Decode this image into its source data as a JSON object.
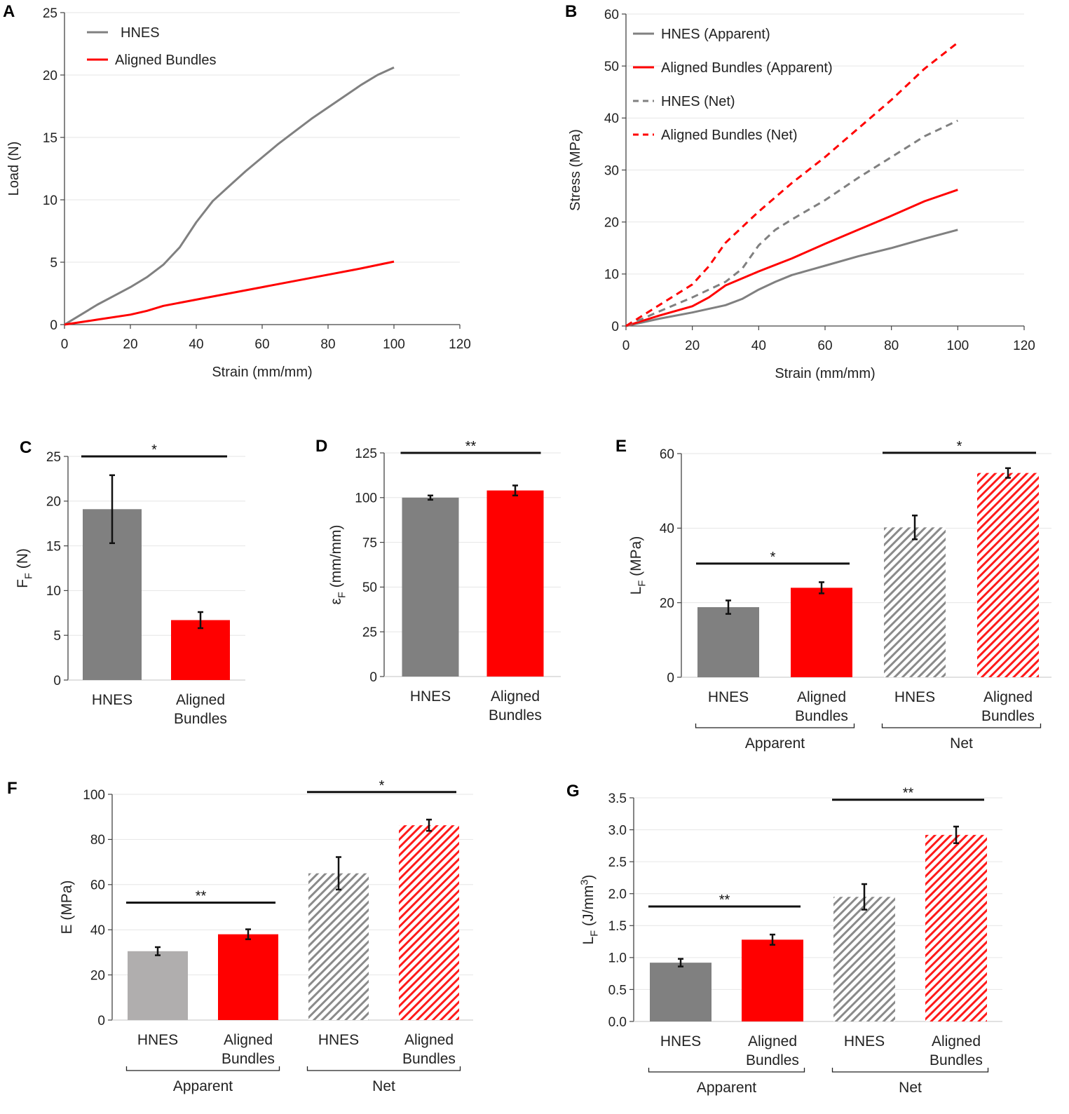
{
  "figure": {
    "colors": {
      "hnes": "#808080",
      "hnes_light": "#b0aeae",
      "aligned": "#ff0000",
      "axis": "#444444",
      "grid": "#e6e6e6",
      "text": "#222222"
    }
  },
  "chart_data": [
    {
      "panel": "A",
      "type": "line",
      "xlabel": "Strain (mm/mm)",
      "ylabel": "Load (N)",
      "xlim": [
        0,
        120
      ],
      "ylim": [
        0,
        25
      ],
      "xticks": [
        0,
        20,
        40,
        60,
        80,
        100,
        120
      ],
      "yticks": [
        0,
        5,
        10,
        15,
        20,
        25
      ],
      "grid": true,
      "legend": "top-left",
      "series": [
        {
          "name": "HNES",
          "color": "#808080",
          "dash": false,
          "points": [
            [
              0,
              0
            ],
            [
              5,
              0.8
            ],
            [
              10,
              1.6
            ],
            [
              15,
              2.3
            ],
            [
              20,
              3.0
            ],
            [
              25,
              3.8
            ],
            [
              30,
              4.8
            ],
            [
              35,
              6.2
            ],
            [
              40,
              8.2
            ],
            [
              45,
              9.9
            ],
            [
              50,
              11.1
            ],
            [
              55,
              12.3
            ],
            [
              60,
              13.4
            ],
            [
              65,
              14.5
            ],
            [
              70,
              15.5
            ],
            [
              75,
              16.5
            ],
            [
              80,
              17.4
            ],
            [
              85,
              18.3
            ],
            [
              90,
              19.2
            ],
            [
              95,
              20.0
            ],
            [
              100,
              20.6
            ]
          ]
        },
        {
          "name": "Aligned Bundles",
          "color": "#ff0000",
          "dash": false,
          "points": [
            [
              0,
              0
            ],
            [
              10,
              0.4
            ],
            [
              20,
              0.8
            ],
            [
              25,
              1.1
            ],
            [
              30,
              1.5
            ],
            [
              40,
              2.0
            ],
            [
              50,
              2.5
            ],
            [
              60,
              3.0
            ],
            [
              70,
              3.5
            ],
            [
              80,
              4.0
            ],
            [
              90,
              4.5
            ],
            [
              100,
              5.05
            ]
          ]
        }
      ]
    },
    {
      "panel": "B",
      "type": "line",
      "xlabel": "Strain (mm/mm)",
      "ylabel": "Stress (MPa)",
      "xlim": [
        0,
        120
      ],
      "ylim": [
        0,
        60
      ],
      "xticks": [
        0,
        20,
        40,
        60,
        80,
        100,
        120
      ],
      "yticks": [
        0,
        10,
        20,
        30,
        40,
        50,
        60
      ],
      "grid": true,
      "legend": "top-left",
      "series": [
        {
          "name": "HNES (Apparent)",
          "color": "#808080",
          "dash": false,
          "points": [
            [
              0,
              0
            ],
            [
              10,
              1.4
            ],
            [
              20,
              2.6
            ],
            [
              30,
              4.0
            ],
            [
              35,
              5.2
            ],
            [
              40,
              7.0
            ],
            [
              45,
              8.5
            ],
            [
              50,
              9.8
            ],
            [
              60,
              11.6
            ],
            [
              70,
              13.4
            ],
            [
              80,
              15.0
            ],
            [
              90,
              16.8
            ],
            [
              100,
              18.5
            ]
          ]
        },
        {
          "name": "Aligned Bundles (Apparent)",
          "color": "#ff0000",
          "dash": false,
          "points": [
            [
              0,
              0
            ],
            [
              10,
              2.0
            ],
            [
              20,
              3.8
            ],
            [
              25,
              5.5
            ],
            [
              30,
              7.8
            ],
            [
              40,
              10.5
            ],
            [
              50,
              13.0
            ],
            [
              60,
              15.8
            ],
            [
              70,
              18.5
            ],
            [
              80,
              21.2
            ],
            [
              90,
              24.0
            ],
            [
              100,
              26.2
            ]
          ]
        },
        {
          "name": "HNES (Net)",
          "color": "#808080",
          "dash": true,
          "points": [
            [
              0,
              0
            ],
            [
              10,
              2.8
            ],
            [
              20,
              5.5
            ],
            [
              30,
              8.5
            ],
            [
              35,
              11.0
            ],
            [
              40,
              15.5
            ],
            [
              45,
              18.5
            ],
            [
              50,
              20.5
            ],
            [
              60,
              24.2
            ],
            [
              70,
              28.5
            ],
            [
              80,
              32.5
            ],
            [
              90,
              36.5
            ],
            [
              100,
              39.5
            ]
          ]
        },
        {
          "name": "Aligned Bundles (Net)",
          "color": "#ff0000",
          "dash": true,
          "points": [
            [
              0,
              0
            ],
            [
              10,
              4.0
            ],
            [
              20,
              8.0
            ],
            [
              25,
              11.5
            ],
            [
              30,
              16.0
            ],
            [
              40,
              22.0
            ],
            [
              50,
              27.5
            ],
            [
              60,
              32.5
            ],
            [
              70,
              38.0
            ],
            [
              80,
              43.5
            ],
            [
              90,
              49.5
            ],
            [
              100,
              54.5
            ]
          ]
        }
      ]
    },
    {
      "panel": "C",
      "type": "bar",
      "ylabel": "FF (N)",
      "ylim": [
        0,
        25
      ],
      "yticks": [
        0,
        5,
        10,
        15,
        20,
        25
      ],
      "grid": true,
      "bars": [
        {
          "label": "HNES",
          "value": 19.1,
          "err": 3.8,
          "color": "#808080",
          "hatch": false
        },
        {
          "label": "Aligned Bundles",
          "value": 6.7,
          "err": 0.9,
          "color": "#ff0000",
          "hatch": false
        }
      ],
      "sig": [
        {
          "from": 0,
          "to": 1,
          "y": 25,
          "label": "*"
        }
      ]
    },
    {
      "panel": "D",
      "type": "bar",
      "ylabel": "εF (mm/mm)",
      "ylim": [
        0,
        125
      ],
      "yticks": [
        0,
        25,
        50,
        75,
        100,
        125
      ],
      "grid": true,
      "bars": [
        {
          "label": "HNES",
          "value": 100,
          "err": 1.2,
          "color": "#808080",
          "hatch": false
        },
        {
          "label": "Aligned Bundles",
          "value": 104,
          "err": 2.8,
          "color": "#ff0000",
          "hatch": false
        }
      ],
      "sig": [
        {
          "from": 0,
          "to": 1,
          "y": 125,
          "label": "**"
        }
      ]
    },
    {
      "panel": "E",
      "type": "bar",
      "ylabel": "LF (MPa)",
      "ylim": [
        0,
        60
      ],
      "yticks": [
        0,
        20,
        40,
        60
      ],
      "grid": true,
      "bars": [
        {
          "label": "HNES",
          "value": 18.8,
          "err": 1.8,
          "color": "#808080",
          "hatch": false
        },
        {
          "label": "Aligned Bundles",
          "value": 24.0,
          "err": 1.5,
          "color": "#ff0000",
          "hatch": false
        },
        {
          "label": "HNES",
          "value": 40.2,
          "err": 3.2,
          "color": "#808080",
          "hatch": true
        },
        {
          "label": "Aligned Bundles",
          "value": 54.8,
          "err": 1.3,
          "color": "#ff0000",
          "hatch": true
        }
      ],
      "groups": [
        {
          "label": "Apparent",
          "from": 0,
          "to": 1
        },
        {
          "label": "Net",
          "from": 2,
          "to": 3
        }
      ],
      "sig": [
        {
          "from": 0,
          "to": 1,
          "y": 30.5,
          "label": "*"
        },
        {
          "from": 2,
          "to": 3,
          "y": 60.2,
          "label": "*"
        }
      ]
    },
    {
      "panel": "F",
      "type": "bar",
      "ylabel": "E (MPa)",
      "ylim": [
        0,
        100
      ],
      "yticks": [
        0,
        20,
        40,
        60,
        80,
        100
      ],
      "grid": true,
      "bars": [
        {
          "label": "HNES",
          "value": 30.5,
          "err": 1.8,
          "color": "#b0aeae",
          "hatch": false
        },
        {
          "label": "Aligned Bundles",
          "value": 38.0,
          "err": 2.2,
          "color": "#ff0000",
          "hatch": false
        },
        {
          "label": "HNES",
          "value": 65.0,
          "err": 7.2,
          "color": "#808080",
          "hatch": true
        },
        {
          "label": "Aligned Bundles",
          "value": 86.3,
          "err": 2.5,
          "color": "#ff0000",
          "hatch": true
        }
      ],
      "groups": [
        {
          "label": "Apparent",
          "from": 0,
          "to": 1
        },
        {
          "label": "Net",
          "from": 2,
          "to": 3
        }
      ],
      "sig": [
        {
          "from": 0,
          "to": 1,
          "y": 52,
          "label": "**"
        },
        {
          "from": 2,
          "to": 3,
          "y": 101,
          "label": "*"
        }
      ]
    },
    {
      "panel": "G",
      "type": "bar",
      "ylabel": "LF (J/mm3)",
      "ylim": [
        0,
        3.5
      ],
      "yticks": [
        0.0,
        0.5,
        1.0,
        1.5,
        2.0,
        2.5,
        3.0,
        3.5
      ],
      "grid": true,
      "bars": [
        {
          "label": "HNES",
          "value": 0.92,
          "err": 0.06,
          "color": "#808080",
          "hatch": false
        },
        {
          "label": "Aligned Bundles",
          "value": 1.28,
          "err": 0.08,
          "color": "#ff0000",
          "hatch": false
        },
        {
          "label": "HNES",
          "value": 1.95,
          "err": 0.2,
          "color": "#808080",
          "hatch": true
        },
        {
          "label": "Aligned Bundles",
          "value": 2.92,
          "err": 0.13,
          "color": "#ff0000",
          "hatch": true
        }
      ],
      "groups": [
        {
          "label": "Apparent",
          "from": 0,
          "to": 1
        },
        {
          "label": "Net",
          "from": 2,
          "to": 3
        }
      ],
      "sig": [
        {
          "from": 0,
          "to": 1,
          "y": 1.8,
          "label": "**"
        },
        {
          "from": 2,
          "to": 3,
          "y": 3.47,
          "label": "**"
        }
      ]
    }
  ]
}
